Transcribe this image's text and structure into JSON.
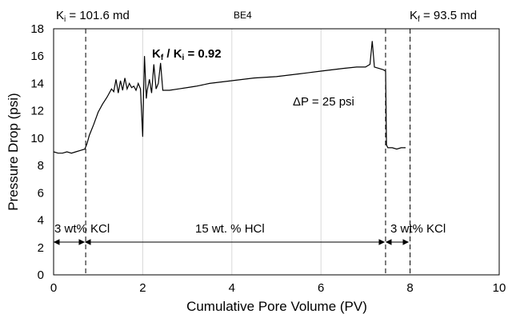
{
  "chart_data": {
    "type": "line",
    "title": "BE4",
    "xlabel": "Cumulative Pore Volume (PV)",
    "ylabel": "Pressure Drop (psi)",
    "xlim": [
      0,
      10
    ],
    "ylim": [
      0,
      18
    ],
    "x_ticks": [
      "0",
      "2",
      "4",
      "6",
      "8",
      "10"
    ],
    "y_ticks": [
      "0",
      "2",
      "4",
      "6",
      "8",
      "10",
      "12",
      "14",
      "16",
      "18"
    ],
    "grid": "vertical gridlines",
    "legend": "none",
    "line_color": "#000000",
    "vlines": [
      0.72,
      7.45,
      8.0
    ],
    "series": [
      {
        "x": [
          0,
          0.1,
          0.2,
          0.3,
          0.4,
          0.5,
          0.6,
          0.7,
          0.75,
          0.8,
          0.9,
          1.0,
          1.1,
          1.2,
          1.3,
          1.35,
          1.4,
          1.45,
          1.5,
          1.55,
          1.6,
          1.65,
          1.7,
          1.75,
          1.8,
          1.85,
          1.9,
          1.95,
          2.0,
          2.02,
          2.04,
          2.08,
          2.1,
          2.15,
          2.2,
          2.25,
          2.3,
          2.35,
          2.4,
          2.45,
          2.5,
          2.6,
          2.8,
          3.0,
          3.2,
          3.5,
          4.0,
          4.5,
          5.0,
          5.5,
          6.0,
          6.5,
          6.8,
          7.0,
          7.1,
          7.15,
          7.2,
          7.3,
          7.4,
          7.45,
          7.47,
          7.5,
          7.6,
          7.7,
          7.8,
          7.9
        ],
        "y": [
          9.0,
          8.9,
          8.9,
          9.0,
          8.9,
          9.0,
          9.1,
          9.2,
          9.6,
          10.2,
          11.0,
          11.9,
          12.5,
          13.0,
          13.6,
          13.4,
          14.3,
          13.3,
          14.2,
          13.5,
          14.4,
          13.6,
          14.0,
          13.7,
          13.8,
          13.5,
          14.0,
          13.6,
          10.1,
          13.4,
          16.0,
          12.9,
          13.5,
          14.3,
          13.3,
          15.4,
          13.6,
          14.0,
          15.5,
          13.5,
          13.5,
          13.5,
          13.6,
          13.7,
          13.8,
          14.0,
          14.2,
          14.4,
          14.5,
          14.7,
          14.9,
          15.1,
          15.2,
          15.2,
          15.4,
          17.1,
          15.2,
          15.1,
          15.0,
          14.9,
          9.5,
          9.3,
          9.3,
          9.2,
          9.3,
          9.3
        ]
      }
    ],
    "annotations": [
      {
        "text": "K",
        "sub": "i",
        "rest": " = 101.6 md"
      },
      {
        "text": "BE4"
      },
      {
        "text": "K",
        "sub": "f",
        "rest": " = 93.5 md"
      },
      {
        "text": "K",
        "sub": "f",
        "rest": " / K",
        "sub2": "i",
        "rest2": " = 0.92"
      },
      {
        "text": "ΔP = 25 psi"
      },
      {
        "text": "3 wt% KCl"
      },
      {
        "text": "15 wt. % HCl"
      },
      {
        "text": "3 wt%  KCl"
      }
    ]
  }
}
